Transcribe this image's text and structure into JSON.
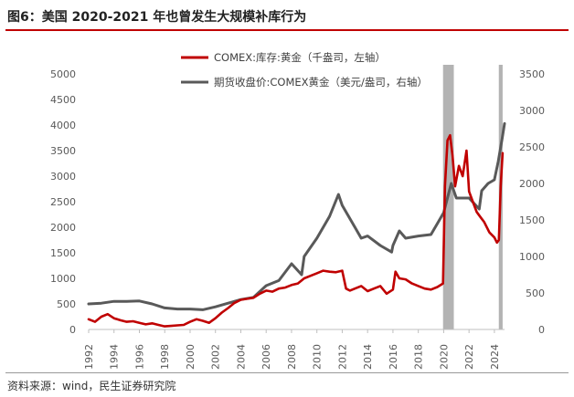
{
  "title": "图6：美国 2020-2021 年也曾发生大规模补库行为",
  "source": "资料来源：wind，民生证券研究院",
  "chart_data": {
    "type": "line",
    "title": "图6：美国 2020-2021 年也曾发生大规模补库行为",
    "x_ticks": [
      "1992",
      "1994",
      "1996",
      "1998",
      "2000",
      "2002",
      "2004",
      "2006",
      "2008",
      "2010",
      "2012",
      "2014",
      "2016",
      "2018",
      "2020",
      "2022",
      "2024"
    ],
    "xlim": [
      1992,
      2024.8
    ],
    "left_axis": {
      "ylim": [
        0,
        5000
      ],
      "ticks": [
        "0",
        "500",
        "1000",
        "1500",
        "2000",
        "2500",
        "3000",
        "3500",
        "4000",
        "4500",
        "5000"
      ]
    },
    "right_axis": {
      "ylim": [
        0,
        3500
      ],
      "ticks": [
        "0",
        "500",
        "1000",
        "1500",
        "2000",
        "2500",
        "3000",
        "3500"
      ]
    },
    "shaded_periods": [
      [
        2019.95,
        2020.8
      ],
      [
        2024.35,
        2024.65
      ]
    ],
    "series": [
      {
        "name": "COMEX:库存:黄金（千盎司，左轴）",
        "axis": "left",
        "color": "#c00000",
        "x": [
          1992,
          1992.5,
          1993,
          1993.5,
          1994,
          1994.5,
          1995,
          1995.5,
          1996,
          1996.5,
          1997,
          1997.5,
          1998,
          1998.5,
          1999,
          1999.5,
          2000,
          2000.5,
          2001,
          2001.5,
          2002,
          2002.5,
          2003,
          2003.5,
          2004,
          2004.5,
          2005,
          2005.5,
          2006,
          2006.5,
          2007,
          2007.5,
          2008,
          2008.5,
          2009,
          2009.5,
          2010,
          2010.5,
          2011,
          2011.5,
          2012,
          2012.3,
          2012.6,
          2013,
          2013.5,
          2014,
          2014.5,
          2015,
          2015.5,
          2016,
          2016.2,
          2016.5,
          2017,
          2017.5,
          2018,
          2018.5,
          2019,
          2019.5,
          2019.95,
          2020.1,
          2020.3,
          2020.5,
          2020.7,
          2020.9,
          2021.2,
          2021.5,
          2021.8,
          2022.0,
          2022.3,
          2022.6,
          2022.9,
          2023.2,
          2023.6,
          2024.0,
          2024.2,
          2024.35,
          2024.5,
          2024.65
        ],
        "values": [
          200,
          150,
          250,
          300,
          220,
          180,
          150,
          160,
          130,
          100,
          120,
          90,
          60,
          70,
          80,
          90,
          150,
          200,
          170,
          130,
          220,
          330,
          420,
          520,
          580,
          600,
          620,
          700,
          760,
          740,
          800,
          820,
          870,
          900,
          1000,
          1050,
          1100,
          1150,
          1130,
          1120,
          1150,
          800,
          760,
          800,
          850,
          750,
          800,
          850,
          700,
          780,
          1130,
          1000,
          980,
          900,
          850,
          800,
          780,
          830,
          900,
          2800,
          3700,
          3800,
          3400,
          2800,
          3200,
          3000,
          3500,
          2700,
          2500,
          2300,
          2200,
          2100,
          1900,
          1800,
          1700,
          1750,
          2800,
          3450
        ]
      },
      {
        "name": "期货收盘价:COMEX黄金（美元/盎司，右轴）",
        "axis": "right",
        "color": "#595959",
        "x": [
          1992,
          1993,
          1994,
          1995,
          1996,
          1997,
          1998,
          1999,
          2000,
          2001,
          2002,
          2003,
          2004,
          2005,
          2006,
          2007,
          2008,
          2008.8,
          2009,
          2010,
          2011,
          2011.7,
          2012,
          2013,
          2013.5,
          2014,
          2015,
          2015.9,
          2016,
          2016.5,
          2017,
          2018,
          2019,
          2019.5,
          2020,
          2020.6,
          2021,
          2022,
          2022.8,
          2023,
          2023.5,
          2024,
          2024.3,
          2024.6,
          2024.8
        ],
        "values": [
          350,
          360,
          385,
          385,
          390,
          350,
          295,
          280,
          280,
          270,
          310,
          360,
          410,
          440,
          600,
          670,
          900,
          750,
          1000,
          1250,
          1550,
          1850,
          1700,
          1400,
          1250,
          1280,
          1150,
          1060,
          1150,
          1350,
          1250,
          1280,
          1300,
          1450,
          1600,
          2000,
          1800,
          1800,
          1650,
          1900,
          2000,
          2050,
          2300,
          2600,
          2820
        ]
      }
    ]
  }
}
